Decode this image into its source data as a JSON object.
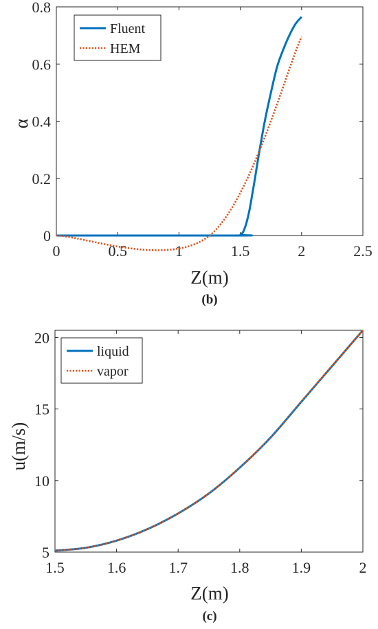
{
  "chart_data": [
    {
      "type": "line",
      "title": "",
      "caption": "(b)",
      "xlabel": "Z(m)",
      "ylabel": "α",
      "xlim": [
        0,
        2.5
      ],
      "ylim": [
        0,
        0.8
      ],
      "xticks": [
        0,
        0.5,
        1,
        1.5,
        2,
        2.5
      ],
      "xtick_labels": [
        "0",
        "0.5",
        "1",
        "1.5",
        "2",
        "2.5"
      ],
      "yticks": [
        0,
        0.2,
        0.4,
        0.6,
        0.8
      ],
      "ytick_labels": [
        "0",
        "0.2",
        "0.4",
        "0.6",
        "0.8"
      ],
      "grid": false,
      "legend_position": "top-left",
      "series": [
        {
          "name": "Fluent",
          "color": "#0072BD",
          "style": "solid",
          "x": [
            0,
            1.48,
            1.5,
            1.52,
            1.54,
            1.56,
            1.58,
            1.6,
            1.62,
            1.65,
            1.7,
            1.75,
            1.8,
            1.85,
            1.9,
            1.95,
            2.0
          ],
          "y": [
            0,
            0,
            0.002,
            0.01,
            0.03,
            0.06,
            0.1,
            0.15,
            0.2,
            0.28,
            0.4,
            0.5,
            0.59,
            0.65,
            0.7,
            0.74,
            0.765
          ]
        },
        {
          "name": "HEM",
          "color": "#D95319",
          "style": "dotted",
          "x": [
            0,
            1.25,
            2.0
          ],
          "y": [
            0,
            0,
            0.695
          ]
        }
      ]
    },
    {
      "type": "line",
      "title": "",
      "caption": "(c)",
      "xlabel": "Z(m)",
      "ylabel": "u(m/s)",
      "xlim": [
        1.5,
        2.0
      ],
      "ylim": [
        5,
        20.5
      ],
      "xticks": [
        1.5,
        1.6,
        1.7,
        1.8,
        1.9,
        2.0
      ],
      "xtick_labels": [
        "1.5",
        "1.6",
        "1.7",
        "1.8",
        "1.9",
        "2"
      ],
      "yticks": [
        5,
        10,
        15,
        20
      ],
      "ytick_labels": [
        "5",
        "10",
        "15",
        "20"
      ],
      "grid": false,
      "legend_position": "top-left",
      "series": [
        {
          "name": "liquid",
          "color": "#0072BD",
          "style": "solid",
          "x": [
            1.5,
            1.55,
            1.6,
            1.65,
            1.7,
            1.75,
            1.8,
            1.85,
            1.9,
            1.95,
            2.0
          ],
          "y": [
            5.1,
            5.3,
            5.8,
            6.6,
            7.7,
            9.1,
            10.9,
            13.0,
            15.5,
            18.0,
            20.5
          ]
        },
        {
          "name": "vapor",
          "color": "#D95319",
          "style": "dotted",
          "x": [
            1.5,
            1.55,
            1.6,
            1.65,
            1.7,
            1.75,
            1.8,
            1.85,
            1.9,
            1.95,
            2.0
          ],
          "y": [
            5.1,
            5.3,
            5.8,
            6.6,
            7.7,
            9.1,
            10.9,
            13.0,
            15.5,
            18.0,
            20.5
          ]
        }
      ]
    }
  ]
}
